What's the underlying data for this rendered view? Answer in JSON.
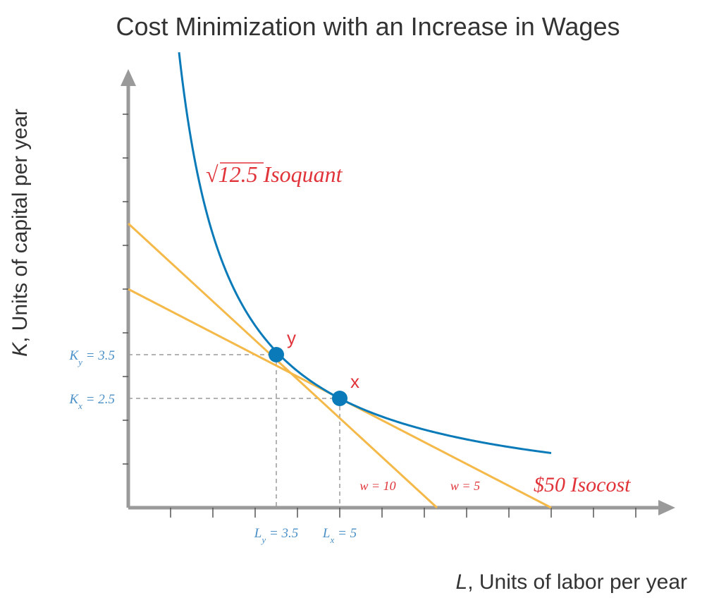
{
  "chart_data": {
    "type": "line",
    "title": "Cost Minimization with an Increase in Wages",
    "xlabel_var": "L",
    "xlabel_rest": ", Units of labor per year",
    "ylabel_var": "K",
    "ylabel_rest": ", Units of capital per year",
    "xlim": [
      0,
      13
    ],
    "ylim": [
      0,
      10
    ],
    "x_ticks": [
      1,
      2,
      3,
      4,
      5,
      6,
      7,
      8,
      9,
      10,
      11,
      12
    ],
    "y_ticks": [
      1,
      2,
      3,
      4,
      5,
      6,
      7,
      8,
      9
    ],
    "series": [
      {
        "kind": "isoquant",
        "label_prefix": "√",
        "label_radicand": "12.5",
        "label_rest": " Isoquant",
        "color": "#0a7ab8",
        "equation": "K = 12.5 / L",
        "x_range": [
          1.2,
          10
        ]
      },
      {
        "kind": "isocost",
        "wage_label": "w = 10",
        "color": "#f5b94a",
        "points": [
          [
            0,
            6.5
          ],
          [
            7.3,
            0
          ]
        ]
      },
      {
        "kind": "isocost",
        "wage_label": "w = 5",
        "color": "#f5b94a",
        "points": [
          [
            0,
            5
          ],
          [
            10,
            0
          ]
        ]
      }
    ],
    "isocost_label": "$50 Isocost",
    "points": [
      {
        "name": "y",
        "x": 3.5,
        "y": 3.5,
        "color": "#0a7ab8"
      },
      {
        "name": "x",
        "x": 5,
        "y": 2.5,
        "color": "#0a7ab8"
      }
    ],
    "x_annotations": [
      {
        "var": "L",
        "sub": "y",
        "rest": " = 3.5",
        "x": 3.5
      },
      {
        "var": "L",
        "sub": "x",
        "rest": " = 5",
        "x": 5
      }
    ],
    "y_annotations": [
      {
        "var": "K",
        "sub": "y",
        "rest": " = 3.5",
        "y": 3.5
      },
      {
        "var": "K",
        "sub": "x",
        "rest": " = 2.5",
        "y": 2.5
      }
    ],
    "axis_color": "#9a9a9a",
    "guide_color": "#9a9a9a",
    "grid": false
  }
}
